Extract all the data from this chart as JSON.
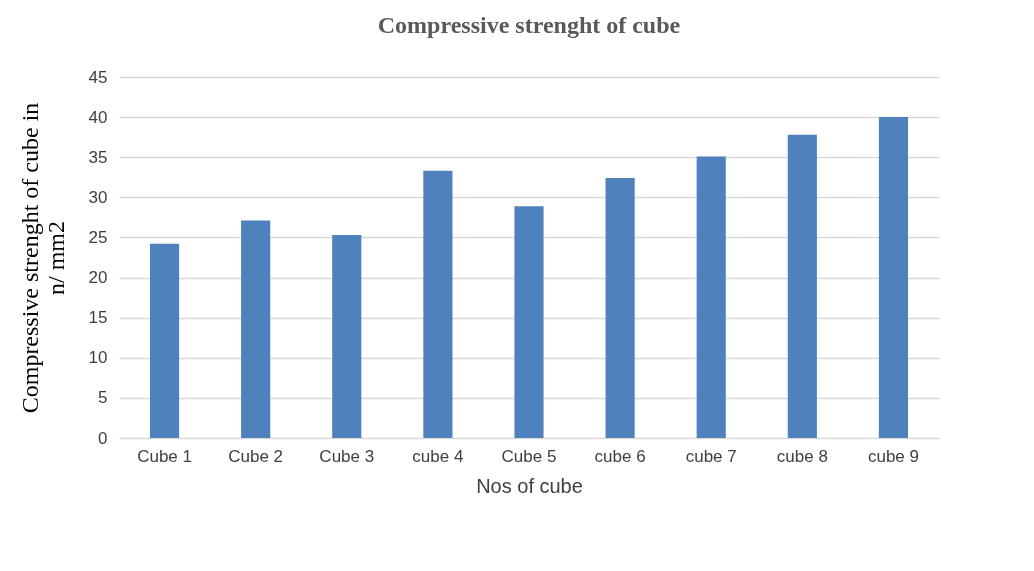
{
  "chart_data": {
    "type": "bar",
    "title": "Compressive strenght of cube",
    "xlabel": "Nos of cube",
    "ylabel": "Compressive strenght of cube  in n/ mm2",
    "categories": [
      "Cube 1",
      "Cube 2",
      "Cube 3",
      "cube 4",
      "Cube 5",
      "cube 6",
      "cube 7",
      "cube 8",
      "cube 9"
    ],
    "values": [
      24.2,
      27.1,
      25.3,
      33.3,
      28.9,
      32.4,
      35.1,
      37.8,
      40
    ],
    "color": "#4f81bd",
    "ylim": [
      0,
      45
    ],
    "yticks": [
      0,
      5,
      10,
      15,
      20,
      25,
      30,
      35,
      40,
      45
    ],
    "grid": "y"
  }
}
